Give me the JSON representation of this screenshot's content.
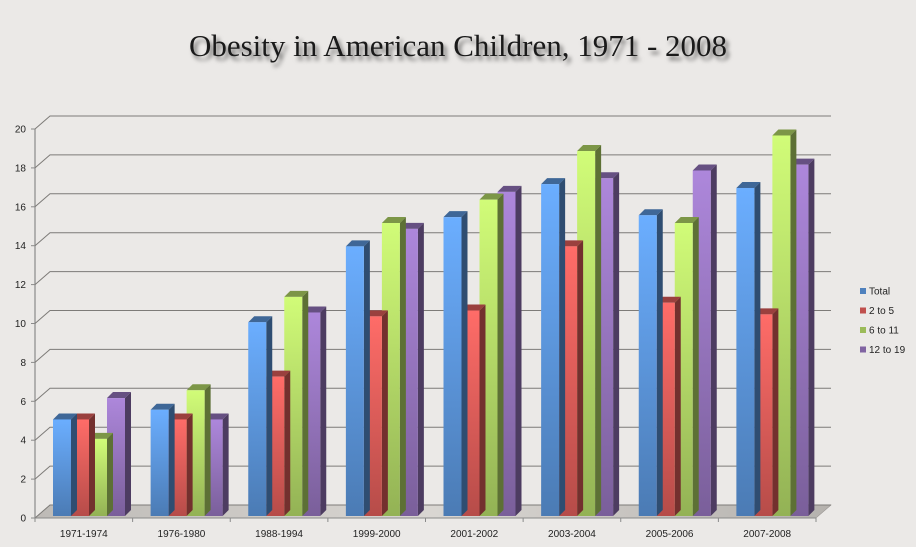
{
  "chart_data": {
    "type": "bar",
    "style": "3d-clustered-column",
    "title": "Obesity in American Children, 1971 - 2008",
    "xlabel": "",
    "ylabel": "",
    "ylim": [
      0,
      20
    ],
    "yticks": [
      0,
      2,
      4,
      6,
      8,
      10,
      12,
      14,
      16,
      18,
      20
    ],
    "grid": true,
    "legend_position": "right",
    "categories": [
      "1971-1974",
      "1976-1980",
      "1988-1994",
      "1999-2000",
      "2001-2002",
      "2003-2004",
      "2005-2006",
      "2007-2008"
    ],
    "series": [
      {
        "name": "Total",
        "color": "#4f81bd",
        "values": [
          5.0,
          5.5,
          10.0,
          13.9,
          15.4,
          17.1,
          15.5,
          16.9
        ]
      },
      {
        "name": "2 to 5",
        "color": "#c0504d",
        "values": [
          5.0,
          5.0,
          7.2,
          10.3,
          10.6,
          13.9,
          11.0,
          10.4
        ]
      },
      {
        "name": "6 to 11",
        "color": "#9bbb59",
        "values": [
          4.0,
          6.5,
          11.3,
          15.1,
          16.3,
          18.8,
          15.1,
          19.6
        ]
      },
      {
        "name": "12 to 19",
        "color": "#8064a2",
        "values": [
          6.1,
          5.0,
          10.5,
          14.8,
          16.7,
          17.4,
          17.8,
          18.1
        ]
      }
    ]
  }
}
